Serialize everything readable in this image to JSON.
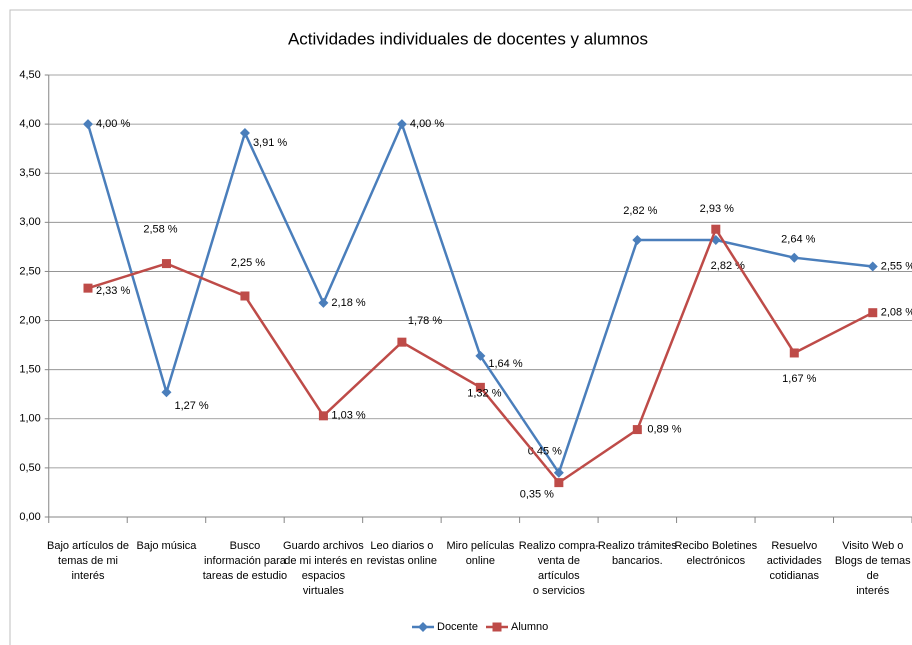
{
  "chart_data": {
    "type": "line",
    "title": "Actividades individuales de docentes y alumnos",
    "categories": [
      "Bajo artículos de\ntemas de mi\ninterés",
      "Bajo música",
      "Busco\ninformación para\ntareas de estudio",
      "Guardo archivos\nde mi interés en\nespacios virtuales",
      "Leo diarios o\nrevistas online",
      "Miro películas\nonline",
      "Realizo compra-\nventa de artículos\no servicios",
      "Realizo trámites\nbancarios.",
      "Recibo Boletines\nelectrónicos",
      "Resuelvo\nactividades\ncotidianas",
      "Visito Web o\nBlogs de temas de\ninterés"
    ],
    "series": [
      {
        "name": "Docente",
        "color": "#4a7ebb",
        "marker": "diamond",
        "values": [
          4.0,
          1.27,
          3.91,
          2.18,
          4.0,
          1.64,
          0.45,
          2.82,
          2.82,
          2.64,
          2.55
        ],
        "value_labels": [
          "4,00 %",
          "1,27 %",
          "3,91 %",
          "2,18 %",
          "4,00 %",
          "1,64 %",
          "0,45 %",
          "2,82 %",
          "2,82 %",
          "2,64 %",
          "2,55 %"
        ]
      },
      {
        "name": "Alumno",
        "color": "#be4b48",
        "marker": "square",
        "values": [
          2.33,
          2.58,
          2.25,
          1.03,
          1.78,
          1.32,
          0.35,
          0.89,
          2.93,
          1.67,
          2.08
        ],
        "value_labels": [
          "2,33 %",
          "2,58 %",
          "2,25 %",
          "1,03 %",
          "1,78 %",
          "1,32 %",
          "0,35 %",
          "0,89 %",
          "2,93 %",
          "1,67 %",
          "2,08 %"
        ]
      }
    ],
    "ylim": [
      0,
      4.5
    ],
    "yticks": [
      {
        "value": 0,
        "label": "0,00"
      },
      {
        "value": 0.5,
        "label": "0,50"
      },
      {
        "value": 1,
        "label": "1,00"
      },
      {
        "value": 1.5,
        "label": "1,50"
      },
      {
        "value": 2,
        "label": "2,00"
      },
      {
        "value": 2.5,
        "label": "2,50"
      },
      {
        "value": 3,
        "label": "3,00"
      },
      {
        "value": 3.5,
        "label": "3,50"
      },
      {
        "value": 4,
        "label": "4,00"
      },
      {
        "value": 4.5,
        "label": "4,50"
      }
    ],
    "grid": true,
    "legend": "bottom"
  }
}
